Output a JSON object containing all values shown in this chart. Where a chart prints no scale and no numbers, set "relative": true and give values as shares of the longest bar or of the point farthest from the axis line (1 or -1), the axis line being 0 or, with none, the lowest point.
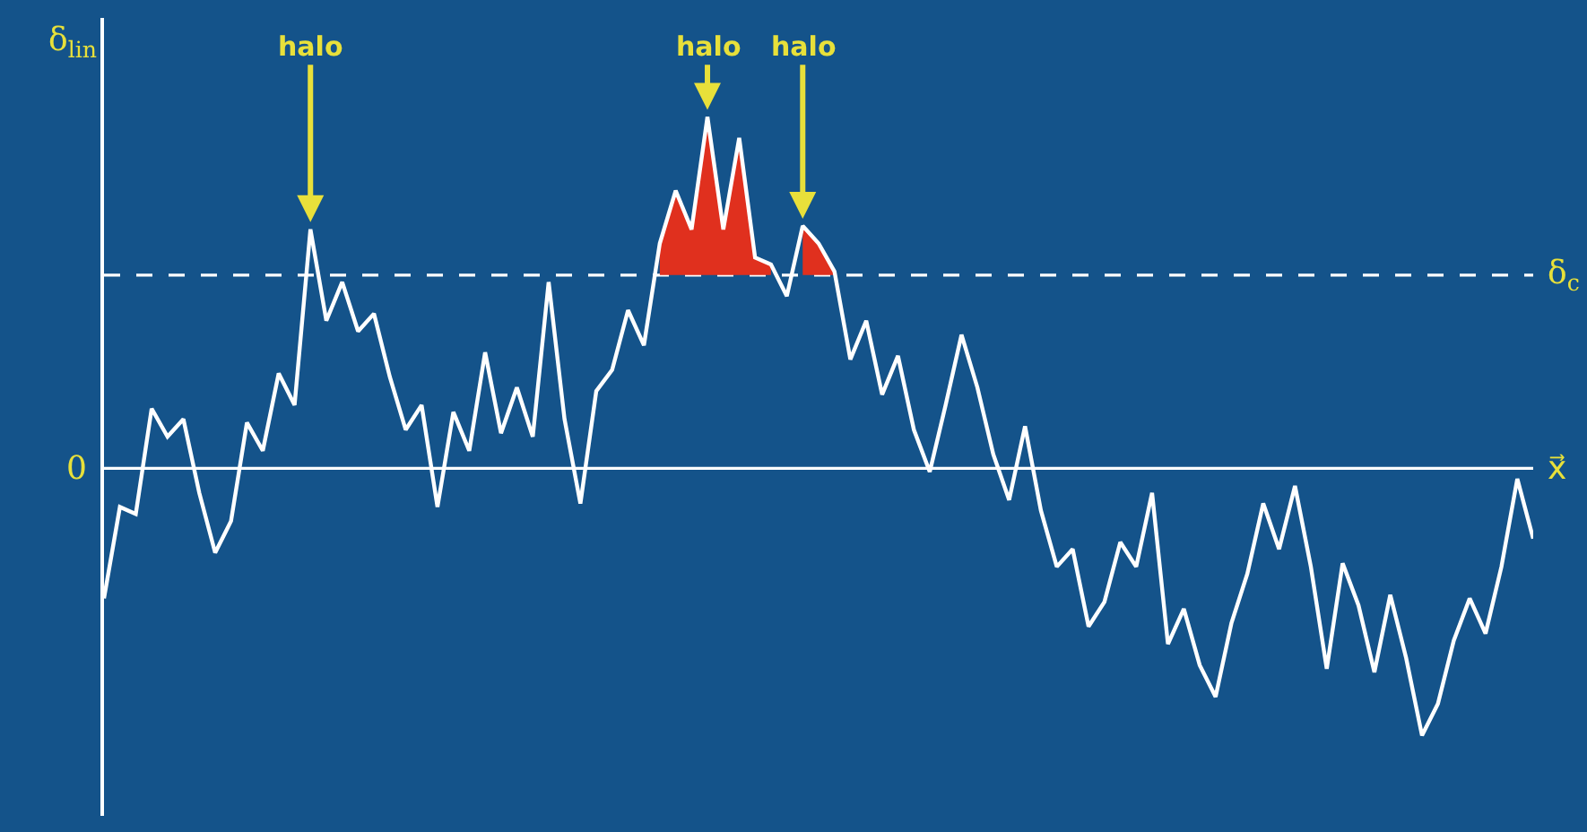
{
  "chart_data": {
    "type": "line",
    "relative": true,
    "xlabel": "x⃗",
    "ylabel": "δ$_{lin}$",
    "categories": [
      null,
      null,
      null,
      null,
      null,
      null,
      null,
      null,
      null,
      null,
      null,
      null,
      null,
      null,
      null,
      null,
      null,
      null,
      null,
      null,
      null,
      null,
      null,
      null,
      null,
      null,
      null,
      null,
      null,
      null,
      null,
      null,
      null,
      null,
      null,
      null,
      null,
      null,
      null,
      null,
      null,
      null,
      null,
      null,
      null,
      null,
      null,
      null,
      null,
      null,
      null,
      null,
      null,
      null,
      null,
      null,
      null,
      null,
      null,
      null,
      null,
      null,
      null,
      null,
      null,
      null,
      null,
      null,
      null,
      null,
      null,
      null,
      null,
      null,
      null,
      null,
      null,
      null,
      null,
      null,
      null,
      null,
      null,
      null,
      null,
      null,
      null,
      null,
      null,
      null,
      null
    ],
    "series": [
      {
        "color": "#ffffff",
        "values": [
          -0.37,
          -0.11,
          -0.13,
          0.17,
          0.09,
          0.14,
          -0.07,
          -0.24,
          -0.15,
          0.13,
          0.05,
          0.27,
          0.18,
          0.68,
          0.42,
          0.53,
          0.39,
          0.44,
          0.26,
          0.11,
          0.18,
          -0.11,
          0.16,
          0.05,
          0.33,
          0.1,
          0.23,
          0.09,
          0.53,
          0.14,
          -0.1,
          0.22,
          0.28,
          0.45,
          0.35,
          0.64,
          0.79,
          0.68,
          1.0,
          0.68,
          0.94,
          0.6,
          0.58,
          0.49,
          0.69,
          0.64,
          0.56,
          0.31,
          0.42,
          0.21,
          0.32,
          0.11,
          -0.01,
          0.18,
          0.38,
          0.23,
          0.04,
          -0.09,
          0.12,
          -0.12,
          -0.28,
          -0.23,
          -0.45,
          -0.38,
          -0.21,
          -0.28,
          -0.07,
          -0.5,
          -0.4,
          -0.56,
          -0.65,
          -0.44,
          -0.3,
          -0.1,
          -0.23,
          -0.05,
          -0.28,
          -0.57,
          -0.27,
          -0.39,
          -0.58,
          -0.36,
          -0.54,
          -0.76,
          -0.67,
          -0.49,
          -0.37,
          -0.47,
          -0.28,
          -0.03,
          -0.2
        ]
      },
      {
        "type": "area",
        "color": "#e0301e",
        "values": [
          null,
          null,
          null,
          null,
          null,
          null,
          null,
          null,
          null,
          null,
          null,
          null,
          null,
          null,
          null,
          null,
          null,
          null,
          null,
          null,
          null,
          null,
          null,
          null,
          null,
          null,
          null,
          null,
          null,
          null,
          null,
          null,
          null,
          null,
          null,
          0.64,
          0.79,
          0.68,
          1.0,
          0.68,
          0.94,
          0.6,
          0.58,
          null,
          0.69,
          0.64,
          0.56,
          null,
          null,
          null,
          null,
          null,
          null,
          null,
          null,
          null,
          null,
          null,
          null,
          null,
          null,
          null,
          null,
          null,
          null,
          null,
          null,
          null,
          null,
          null,
          null,
          null,
          null,
          null,
          null,
          null,
          null,
          null,
          null,
          null,
          null,
          null,
          null,
          null,
          null,
          null,
          null,
          null,
          null,
          null,
          null
        ]
      }
    ],
    "ref_lines": [
      {
        "axis": "y",
        "value": 0,
        "label": "0",
        "color": "#ffffff",
        "line_style": "solid"
      },
      {
        "axis": "y",
        "value": 0.55,
        "label": "δ$_{c}$",
        "color": "#ffffff",
        "line_style": "dashed"
      }
    ],
    "annotations": [
      {
        "text": "halo",
        "y": 0.68
      },
      {
        "text": "halo",
        "y": 1.0
      },
      {
        "text": "halo",
        "y": 0.69
      }
    ],
    "marker": "none",
    "line_style": "solid"
  }
}
